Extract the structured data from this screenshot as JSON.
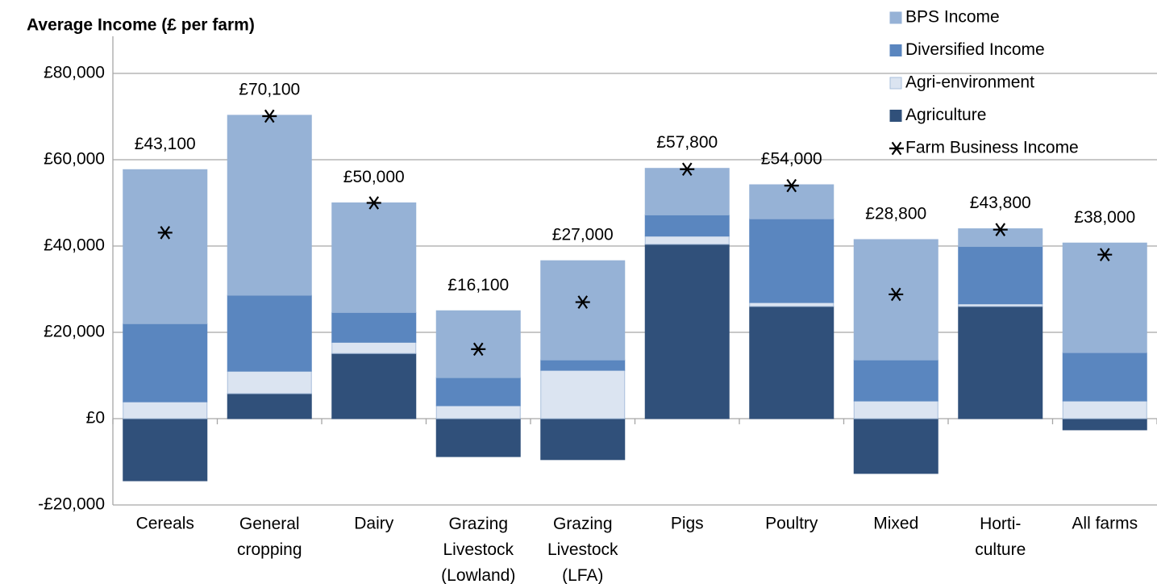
{
  "chart_data": {
    "type": "bar",
    "stacked": true,
    "title": "Average Income (£ per farm)",
    "categories": [
      "Cereals",
      "General\ncropping",
      "Dairy",
      "Grazing\nLivestock\n(Lowland)",
      "Grazing\nLivestock\n(LFA)",
      "Pigs",
      "Poultry",
      "Mixed",
      "Horti-\nculture",
      "All farms"
    ],
    "series": [
      {
        "name": "Agriculture",
        "color": "#30507a",
        "values": [
          -14400,
          5800,
          15100,
          -8800,
          -9500,
          40400,
          26000,
          -12700,
          26000,
          -2600
        ]
      },
      {
        "name": "Agri-environment",
        "color": "#dbe4f1",
        "values": [
          3900,
          5200,
          2600,
          3000,
          11200,
          1900,
          900,
          4100,
          600,
          4100
        ]
      },
      {
        "name": "Diversified Income",
        "color": "#5a86bf",
        "values": [
          18100,
          17600,
          6900,
          6500,
          2400,
          4900,
          19400,
          9500,
          13300,
          11200
        ]
      },
      {
        "name": "BPS Income",
        "color": "#96b2d6",
        "values": [
          35700,
          41700,
          25400,
          15500,
          23000,
          10800,
          7900,
          27900,
          4100,
          25400
        ]
      },
      {
        "name": "Farm Business Income",
        "type": "scatter",
        "color": "#000000",
        "values": [
          43100,
          70100,
          50000,
          16100,
          27000,
          57800,
          54000,
          28800,
          43800,
          38000
        ],
        "value_labels": [
          "£43,100",
          "£70,100",
          "£50,000",
          "£16,100",
          "£27,000",
          "£57,800",
          "£54,000",
          "£28,800",
          "£43,800",
          "£38,000"
        ]
      }
    ],
    "ylim": [
      -20000,
      80000
    ],
    "yticks": [
      {
        "value": -20000,
        "label": "-£20,000"
      },
      {
        "value": 0,
        "label": "£0"
      },
      {
        "value": 20000,
        "label": "£20,000"
      },
      {
        "value": 40000,
        "label": "£40,000"
      },
      {
        "value": 60000,
        "label": "£60,000"
      },
      {
        "value": 80000,
        "label": "£80,000"
      }
    ],
    "grid": true,
    "legend": "top-right"
  }
}
